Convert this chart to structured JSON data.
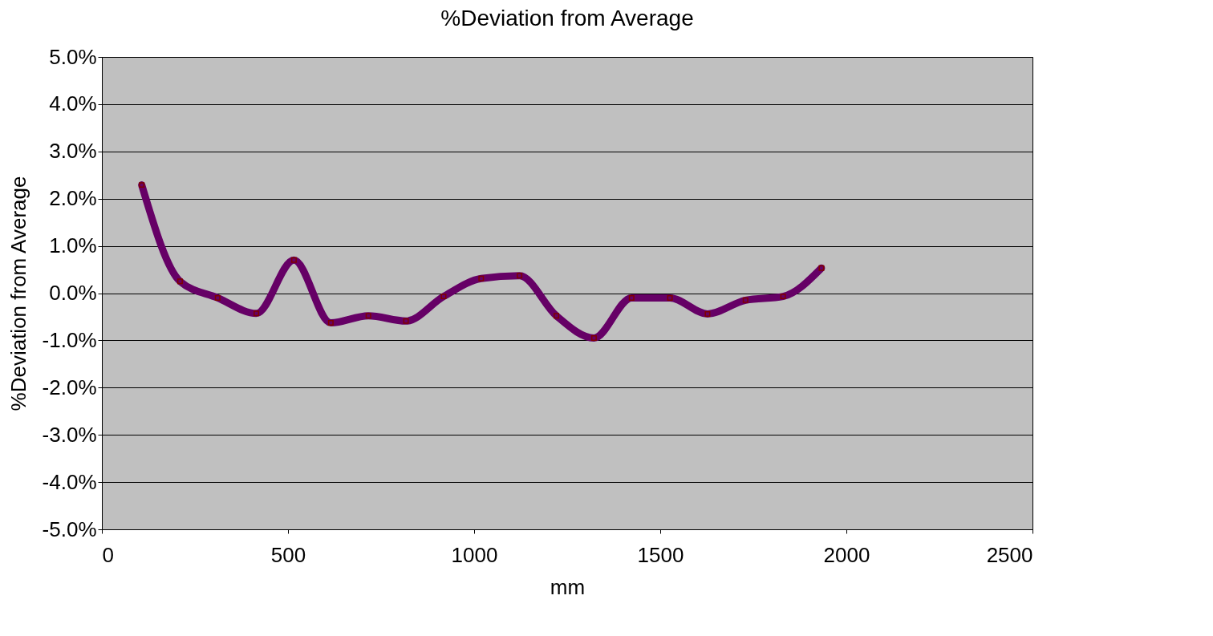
{
  "chart_data": {
    "type": "line",
    "title": "%Deviation from Average",
    "xlabel": "mm",
    "ylabel": "%Deviation from Average",
    "x": [
      107,
      210,
      311,
      415,
      516,
      615,
      716,
      817,
      918,
      1019,
      1122,
      1221,
      1322,
      1423,
      1526,
      1627,
      1729,
      1830,
      1933
    ],
    "series": [
      {
        "color": "#660066",
        "values": [
          2.29,
          0.25,
          -0.1,
          -0.43,
          0.7,
          -0.63,
          -0.48,
          -0.59,
          -0.07,
          0.31,
          0.37,
          -0.48,
          -0.95,
          -0.1,
          -0.1,
          -0.44,
          -0.15,
          -0.07,
          0.53
        ]
      }
    ],
    "xlim": [
      0,
      2500
    ],
    "xticks": [
      0,
      500,
      1000,
      1500,
      2000,
      2500
    ],
    "ylim": [
      -5,
      5
    ],
    "yticks": [
      {
        "value": -5,
        "label": "-5.0%"
      },
      {
        "value": -4,
        "label": "-4.0%"
      },
      {
        "value": -3,
        "label": "-3.0%"
      },
      {
        "value": -2,
        "label": "-2.0%"
      },
      {
        "value": -1,
        "label": "-1.0%"
      },
      {
        "value": 0,
        "label": "0.0%"
      },
      {
        "value": 1,
        "label": "1.0%"
      },
      {
        "value": 2,
        "label": "2.0%"
      },
      {
        "value": 3,
        "label": "3.0%"
      },
      {
        "value": 4,
        "label": "4.0%"
      },
      {
        "value": 5,
        "label": "5.0%"
      }
    ],
    "grid": "y",
    "marker": "square",
    "line_style": "solid"
  }
}
